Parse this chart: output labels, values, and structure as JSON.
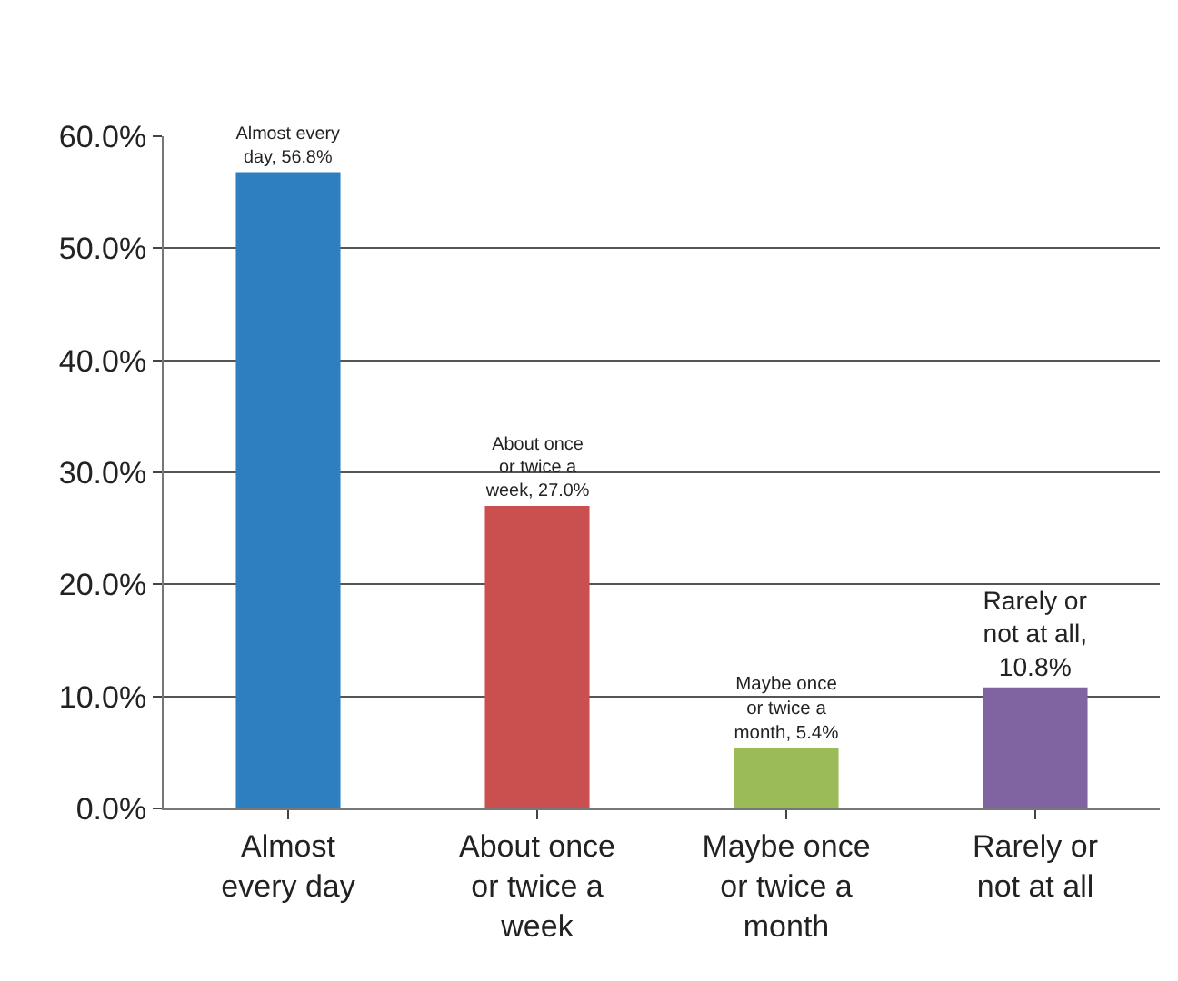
{
  "chart_data": {
    "type": "bar",
    "categories": [
      "Almost every day",
      "About once or twice a week",
      "Maybe once or twice a month",
      "Rarely or not at all"
    ],
    "values": [
      56.8,
      27.0,
      5.4,
      10.8
    ],
    "colors": [
      "#2e7fc0",
      "#c9504f",
      "#9bbb59",
      "#8064a2"
    ],
    "value_labels": [
      "Almost every day, 56.8%",
      "About once or twice a week, 27.0%",
      "Maybe once or twice a month, 5.4%",
      "Rarely or not at all, 10.8%"
    ],
    "ylim": [
      0,
      60
    ],
    "yticks": [
      {
        "value": 0,
        "label": "0.0%"
      },
      {
        "value": 10,
        "label": "10.0%"
      },
      {
        "value": 20,
        "label": "20.0%"
      },
      {
        "value": 30,
        "label": "30.0%"
      },
      {
        "value": 40,
        "label": "40.0%"
      },
      {
        "value": 50,
        "label": "50.0%"
      },
      {
        "value": 60,
        "label": "60.0%"
      }
    ],
    "grid": "y",
    "legend": false
  }
}
